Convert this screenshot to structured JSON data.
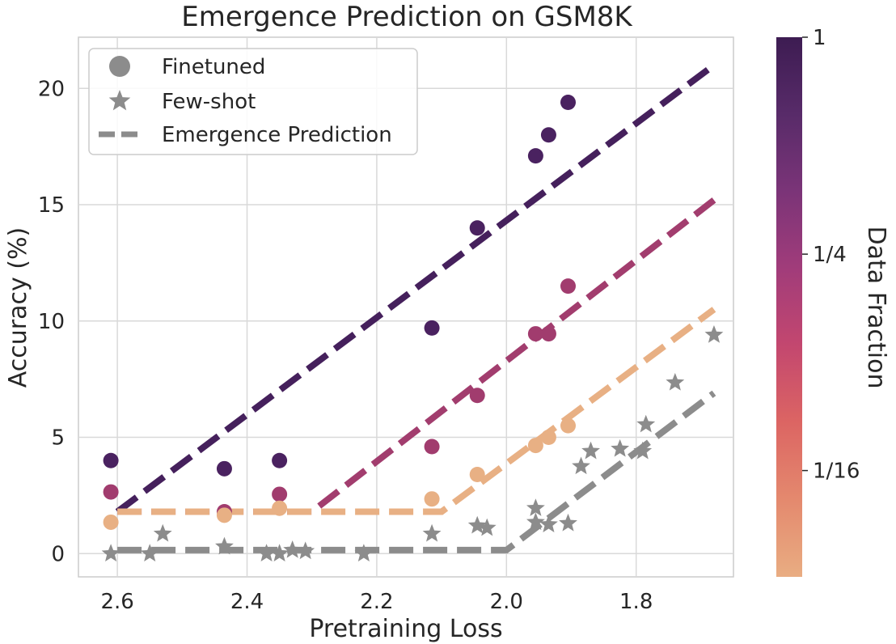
{
  "chart_data": {
    "type": "scatter",
    "title": "Emergence Prediction on GSM8K",
    "xlabel": "Pretraining Loss",
    "ylabel": "Accuracy (%)",
    "xlim": [
      2.66,
      1.65
    ],
    "ylim": [
      -1,
      22.2
    ],
    "x_reversed": true,
    "xticks": [
      2.6,
      2.4,
      2.2,
      2.0,
      1.8
    ],
    "xtick_labels": [
      "2.6",
      "2.4",
      "2.2",
      "2.0",
      "1.8"
    ],
    "yticks": [
      0,
      5,
      10,
      15,
      20
    ],
    "ytick_labels": [
      "0",
      "5",
      "10",
      "15",
      "20"
    ],
    "grid": true,
    "legend": {
      "position": "top-left",
      "entries": [
        {
          "label": "Finetuned",
          "marker": "circle"
        },
        {
          "label": "Few-shot",
          "marker": "star"
        },
        {
          "label": "Emergence Prediction",
          "marker": "dashed-line"
        }
      ]
    },
    "colorbar": {
      "label": "Data Fraction",
      "ticks": [
        "1",
        "1/4",
        "1/16"
      ],
      "colors": [
        "#3d1c52",
        "#582b69",
        "#7b3478",
        "#a13c7a",
        "#c3476f",
        "#dc6563",
        "#e4896e",
        "#e9ad82"
      ]
    },
    "series": [
      {
        "name": "1",
        "color": "#4a2260",
        "marker": "circle",
        "x": [
          2.61,
          2.435,
          2.35,
          2.115,
          2.045,
          1.955,
          1.935,
          1.905
        ],
        "y": [
          4.0,
          3.65,
          4.0,
          9.7,
          14.0,
          17.1,
          18.0,
          19.4
        ]
      },
      {
        "name": "1/4",
        "color": "#a13c6e",
        "marker": "circle",
        "x": [
          2.61,
          2.435,
          2.35,
          2.115,
          2.045,
          1.955,
          1.935,
          1.905
        ],
        "y": [
          2.65,
          1.8,
          2.55,
          4.6,
          6.8,
          9.45,
          9.45,
          11.5
        ]
      },
      {
        "name": "1/16",
        "color": "#e8b084",
        "marker": "circle",
        "x": [
          2.61,
          2.435,
          2.35,
          2.115,
          2.045,
          1.955,
          1.935,
          1.905
        ],
        "y": [
          1.35,
          1.65,
          1.95,
          2.35,
          3.4,
          4.65,
          5.0,
          5.5
        ]
      },
      {
        "name": "Few-shot",
        "color": "#8c8c8c",
        "marker": "star",
        "x": [
          2.61,
          2.55,
          2.53,
          2.435,
          2.37,
          2.35,
          2.33,
          2.31,
          2.22,
          2.115,
          2.045,
          2.03,
          1.955,
          1.955,
          1.935,
          1.905,
          1.885,
          1.87,
          1.825,
          1.79,
          1.785,
          1.74,
          1.68
        ],
        "y": [
          0.0,
          0.0,
          0.85,
          0.3,
          0.0,
          0.0,
          0.15,
          0.1,
          0.0,
          0.85,
          1.2,
          1.1,
          1.95,
          1.35,
          1.25,
          1.3,
          3.75,
          4.4,
          4.5,
          4.4,
          5.55,
          7.35,
          9.4
        ]
      }
    ],
    "predictions": [
      {
        "name": "1",
        "color": "#45205c",
        "x": [
          2.6,
          1.68
        ],
        "y": [
          1.8,
          21.0
        ]
      },
      {
        "name": "1/4",
        "color": "#a23d6e",
        "x": [
          2.6,
          2.3,
          1.68
        ],
        "y": [
          1.8,
          1.8,
          15.2
        ]
      },
      {
        "name": "1/16",
        "color": "#e8b084",
        "x": [
          2.6,
          2.1,
          1.68
        ],
        "y": [
          1.8,
          1.8,
          10.5
        ]
      },
      {
        "name": "Few-shot",
        "color": "#8c8c8c",
        "x": [
          2.6,
          2.0,
          1.68
        ],
        "y": [
          0.15,
          0.15,
          6.9
        ]
      }
    ]
  }
}
